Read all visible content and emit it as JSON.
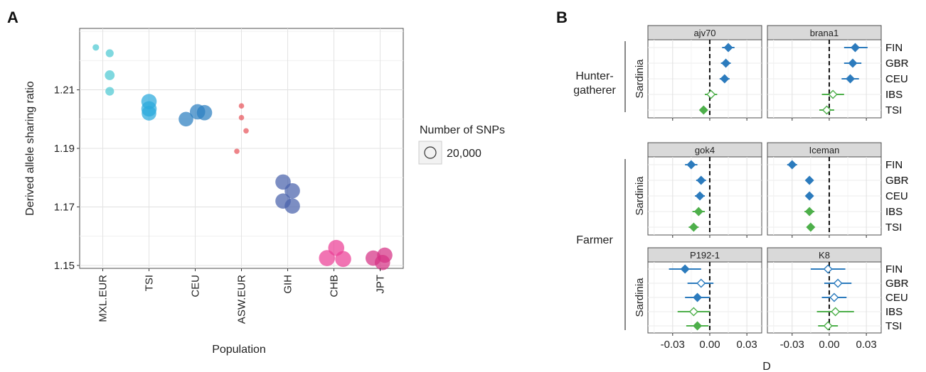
{
  "panel_a": {
    "letter": "A",
    "legend_title": "Number of SNPs",
    "legend_value": "20,000"
  },
  "panel_b": {
    "letter": "B",
    "colors": {
      "FIN": "#2c7bbd",
      "GBR": "#2c7bbd",
      "CEU": "#2c7bbd",
      "IBS": "#4daf4a",
      "TSI": "#4daf4a"
    }
  },
  "chart_data": [
    {
      "type": "scatter",
      "title": "",
      "xlabel": "Population",
      "ylabel": "Derived allele sharing ratio",
      "categories": [
        "MXL.EUR",
        "TSI",
        "CEU",
        "ASW.EUR",
        "GIH",
        "CHB",
        "JPT"
      ],
      "yticks": [
        "1.15",
        "1.17",
        "1.19",
        "1.21"
      ],
      "ylim": [
        1.149,
        1.231
      ],
      "grid": true,
      "legend": "right",
      "series": [
        {
          "category": "MXL.EUR",
          "color": "#4ec9d2",
          "points": [
            {
              "dx": -0.15,
              "y": 1.2245,
              "snps": 4000
            },
            {
              "dx": 0.15,
              "y": 1.2225,
              "snps": 6000
            },
            {
              "dx": 0.15,
              "y": 1.215,
              "snps": 9000
            },
            {
              "dx": 0.15,
              "y": 1.2095,
              "snps": 7000
            }
          ]
        },
        {
          "category": "TSI",
          "color": "#29a9dd",
          "points": [
            {
              "dx": 0.0,
              "y": 1.206,
              "snps": 22000
            },
            {
              "dx": 0.0,
              "y": 1.2035,
              "snps": 22000
            },
            {
              "dx": 0.0,
              "y": 1.202,
              "snps": 20000
            }
          ]
        },
        {
          "category": "CEU",
          "color": "#2c7fc0",
          "points": [
            {
              "dx": -0.2,
              "y": 1.2,
              "snps": 20000
            },
            {
              "dx": 0.05,
              "y": 1.2025,
              "snps": 22000
            },
            {
              "dx": 0.2,
              "y": 1.2022,
              "snps": 22000
            }
          ]
        },
        {
          "category": "ASW.EUR",
          "color": "#e8545c",
          "points": [
            {
              "dx": 0.0,
              "y": 1.2045,
              "snps": 2800
            },
            {
              "dx": 0.0,
              "y": 1.2005,
              "snps": 2800
            },
            {
              "dx": 0.1,
              "y": 1.196,
              "snps": 2800
            },
            {
              "dx": -0.1,
              "y": 1.189,
              "snps": 2800
            }
          ]
        },
        {
          "category": "GIH",
          "color": "#4963ac",
          "points": [
            {
              "dx": -0.1,
              "y": 1.1785,
              "snps": 22000
            },
            {
              "dx": 0.1,
              "y": 1.1755,
              "snps": 22000
            },
            {
              "dx": -0.1,
              "y": 1.172,
              "snps": 22000
            },
            {
              "dx": 0.1,
              "y": 1.1703,
              "snps": 22000
            }
          ]
        },
        {
          "category": "CHB",
          "color": "#ec3f95",
          "points": [
            {
              "dx": -0.15,
              "y": 1.1525,
              "snps": 24000
            },
            {
              "dx": 0.05,
              "y": 1.156,
              "snps": 24000
            },
            {
              "dx": 0.2,
              "y": 1.1522,
              "snps": 24000
            }
          ]
        },
        {
          "category": "JPT",
          "color": "#d63285",
          "points": [
            {
              "dx": -0.15,
              "y": 1.1525,
              "snps": 22000
            },
            {
              "dx": 0.1,
              "y": 1.1535,
              "snps": 22000
            },
            {
              "dx": 0.05,
              "y": 1.151,
              "snps": 22000
            }
          ]
        }
      ]
    },
    {
      "type": "scatter",
      "title": "",
      "xlabel": "D",
      "xticks": [
        "-0.03",
        "0.00",
        "0.03"
      ],
      "xlim": [
        -0.05,
        0.042
      ],
      "populations": [
        "FIN",
        "GBR",
        "CEU",
        "IBS",
        "TSI"
      ],
      "subgroup_label": "Sardinia",
      "groups": [
        {
          "label": "Hunter-\ngatherer",
          "panels": [
            {
              "strip": "ajv70",
              "points": [
                {
                  "pop": "FIN",
                  "d": 0.015,
                  "lo": 0.01,
                  "hi": 0.02,
                  "filled": true
                },
                {
                  "pop": "GBR",
                  "d": 0.013,
                  "lo": 0.009,
                  "hi": 0.017,
                  "filled": true
                },
                {
                  "pop": "CEU",
                  "d": 0.012,
                  "lo": 0.008,
                  "hi": 0.016,
                  "filled": true
                },
                {
                  "pop": "IBS",
                  "d": 0.001,
                  "lo": -0.004,
                  "hi": 0.006,
                  "filled": false
                },
                {
                  "pop": "TSI",
                  "d": -0.005,
                  "lo": -0.008,
                  "hi": -0.002,
                  "filled": true
                }
              ]
            },
            {
              "strip": "brana1",
              "points": [
                {
                  "pop": "FIN",
                  "d": 0.021,
                  "lo": 0.012,
                  "hi": 0.031,
                  "filled": true
                },
                {
                  "pop": "GBR",
                  "d": 0.019,
                  "lo": 0.012,
                  "hi": 0.026,
                  "filled": true
                },
                {
                  "pop": "CEU",
                  "d": 0.017,
                  "lo": 0.01,
                  "hi": 0.024,
                  "filled": true
                },
                {
                  "pop": "IBS",
                  "d": 0.003,
                  "lo": -0.006,
                  "hi": 0.012,
                  "filled": false
                },
                {
                  "pop": "TSI",
                  "d": -0.002,
                  "lo": -0.008,
                  "hi": 0.004,
                  "filled": false
                }
              ]
            }
          ]
        },
        {
          "label": "Farmer",
          "panels": [
            {
              "strip": "gok4",
              "points": [
                {
                  "pop": "FIN",
                  "d": -0.015,
                  "lo": -0.02,
                  "hi": -0.01,
                  "filled": true
                },
                {
                  "pop": "GBR",
                  "d": -0.007,
                  "lo": -0.011,
                  "hi": -0.003,
                  "filled": true
                },
                {
                  "pop": "CEU",
                  "d": -0.008,
                  "lo": -0.012,
                  "hi": -0.004,
                  "filled": true
                },
                {
                  "pop": "IBS",
                  "d": -0.009,
                  "lo": -0.014,
                  "hi": -0.004,
                  "filled": true
                },
                {
                  "pop": "TSI",
                  "d": -0.013,
                  "lo": -0.017,
                  "hi": -0.009,
                  "filled": true
                }
              ]
            },
            {
              "strip": "Iceman",
              "points": [
                {
                  "pop": "FIN",
                  "d": -0.03,
                  "lo": -0.034,
                  "hi": -0.026,
                  "filled": true
                },
                {
                  "pop": "GBR",
                  "d": -0.016,
                  "lo": -0.019,
                  "hi": -0.013,
                  "filled": true
                },
                {
                  "pop": "CEU",
                  "d": -0.016,
                  "lo": -0.019,
                  "hi": -0.013,
                  "filled": true
                },
                {
                  "pop": "IBS",
                  "d": -0.016,
                  "lo": -0.02,
                  "hi": -0.012,
                  "filled": true
                },
                {
                  "pop": "TSI",
                  "d": -0.015,
                  "lo": -0.018,
                  "hi": -0.012,
                  "filled": true
                }
              ]
            },
            {
              "strip": "P192-1",
              "points": [
                {
                  "pop": "FIN",
                  "d": -0.02,
                  "lo": -0.033,
                  "hi": -0.007,
                  "filled": true
                },
                {
                  "pop": "GBR",
                  "d": -0.007,
                  "lo": -0.018,
                  "hi": 0.003,
                  "filled": false
                },
                {
                  "pop": "CEU",
                  "d": -0.01,
                  "lo": -0.02,
                  "hi": 0.0,
                  "filled": true
                },
                {
                  "pop": "IBS",
                  "d": -0.013,
                  "lo": -0.026,
                  "hi": 0.0,
                  "filled": false
                },
                {
                  "pop": "TSI",
                  "d": -0.01,
                  "lo": -0.019,
                  "hi": -0.001,
                  "filled": true
                }
              ]
            },
            {
              "strip": "K8",
              "points": [
                {
                  "pop": "FIN",
                  "d": -0.001,
                  "lo": -0.015,
                  "hi": 0.013,
                  "filled": false
                },
                {
                  "pop": "GBR",
                  "d": 0.007,
                  "lo": -0.004,
                  "hi": 0.018,
                  "filled": false
                },
                {
                  "pop": "CEU",
                  "d": 0.004,
                  "lo": -0.006,
                  "hi": 0.014,
                  "filled": false
                },
                {
                  "pop": "IBS",
                  "d": 0.005,
                  "lo": -0.01,
                  "hi": 0.02,
                  "filled": false
                },
                {
                  "pop": "TSI",
                  "d": -0.001,
                  "lo": -0.009,
                  "hi": 0.007,
                  "filled": false
                }
              ]
            }
          ]
        }
      ]
    }
  ]
}
